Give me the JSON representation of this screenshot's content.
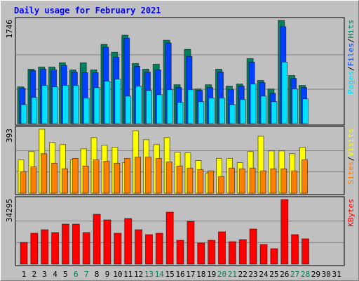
{
  "title": "Daily usage for February 2021",
  "legend_separator": "/",
  "chart_data": [
    {
      "type": "bar",
      "ylim": [
        0,
        1746
      ],
      "yticks": [
        1746
      ],
      "series": [
        {
          "name": "Hits",
          "color": "#00805c",
          "values": [
            622,
            921,
            957,
            957,
            1029,
            909,
            1029,
            909,
            1340,
            1208,
            1495,
            1017,
            921,
            1005,
            1411,
            658,
            1256,
            586,
            658,
            921,
            634,
            670,
            1100,
            730,
            586,
            1746,
            813,
            646,
            null,
            null,
            null
          ]
        },
        {
          "name": "Files",
          "color": "#0040ff",
          "values": [
            598,
            897,
            921,
            909,
            981,
            873,
            861,
            861,
            1292,
            1124,
            1447,
            969,
            873,
            909,
            1364,
            610,
            1136,
            562,
            610,
            873,
            574,
            634,
            1041,
            694,
            514,
            1639,
            765,
            610,
            null,
            null,
            null
          ]
        },
        {
          "name": "Pages",
          "color": "#00e0ff",
          "values": [
            323,
            443,
            646,
            622,
            646,
            646,
            431,
            610,
            718,
            754,
            466,
            634,
            562,
            490,
            574,
            359,
            574,
            371,
            431,
            431,
            323,
            407,
            670,
            466,
            371,
            1041,
            586,
            419,
            null,
            null,
            null
          ]
        }
      ]
    },
    {
      "type": "bar",
      "ylim": [
        0,
        393
      ],
      "yticks": [
        393
      ],
      "series": [
        {
          "name": "Visits",
          "color": "#ffff00",
          "values": [
            205,
            256,
            393,
            312,
            299,
            205,
            273,
            342,
            295,
            282,
            188,
            384,
            329,
            299,
            342,
            252,
            248,
            201,
            124,
            214,
            214,
            188,
            256,
            350,
            260,
            260,
            243,
            282,
            null,
            null,
            null
          ]
        },
        {
          "name": "Sites",
          "color": "#ff8000",
          "values": [
            132,
            162,
            243,
            184,
            150,
            214,
            167,
            205,
            196,
            184,
            214,
            222,
            222,
            214,
            192,
            167,
            154,
            145,
            137,
            102,
            154,
            150,
            154,
            137,
            150,
            150,
            137,
            205,
            null,
            null,
            null
          ]
        }
      ]
    },
    {
      "type": "bar",
      "ylim": [
        0,
        34295
      ],
      "yticks": [
        34295
      ],
      "categories": [
        "1",
        "2",
        "3",
        "4",
        "5",
        "6",
        "7",
        "8",
        "9",
        "10",
        "11",
        "12",
        "13",
        "14",
        "15",
        "16",
        "17",
        "18",
        "19",
        "20",
        "21",
        "22",
        "23",
        "24",
        "25",
        "26",
        "27",
        "28",
        "29",
        "30",
        "31"
      ],
      "category_colors": [
        "#000000",
        "#000000",
        "#000000",
        "#000000",
        "#000000",
        "#00805c",
        "#00805c",
        "#000000",
        "#000000",
        "#000000",
        "#000000",
        "#000000",
        "#00805c",
        "#00805c",
        "#000000",
        "#000000",
        "#000000",
        "#000000",
        "#000000",
        "#00805c",
        "#00805c",
        "#000000",
        "#000000",
        "#000000",
        "#000000",
        "#000000",
        "#00805c",
        "#00805c",
        "#000000",
        "#000000",
        "#000000"
      ],
      "series": [
        {
          "name": "KBytes",
          "color": "#ff0000",
          "values": [
            11557,
            16403,
            18267,
            16776,
            21250,
            21250,
            16776,
            26469,
            23486,
            16403,
            24232,
            18267,
            15657,
            16403,
            27587,
            12675,
            22741,
            11184,
            12675,
            17149,
            11930,
            13048,
            18640,
            10438,
            8202,
            34295,
            15657,
            13421,
            null,
            null,
            null
          ]
        }
      ]
    }
  ]
}
